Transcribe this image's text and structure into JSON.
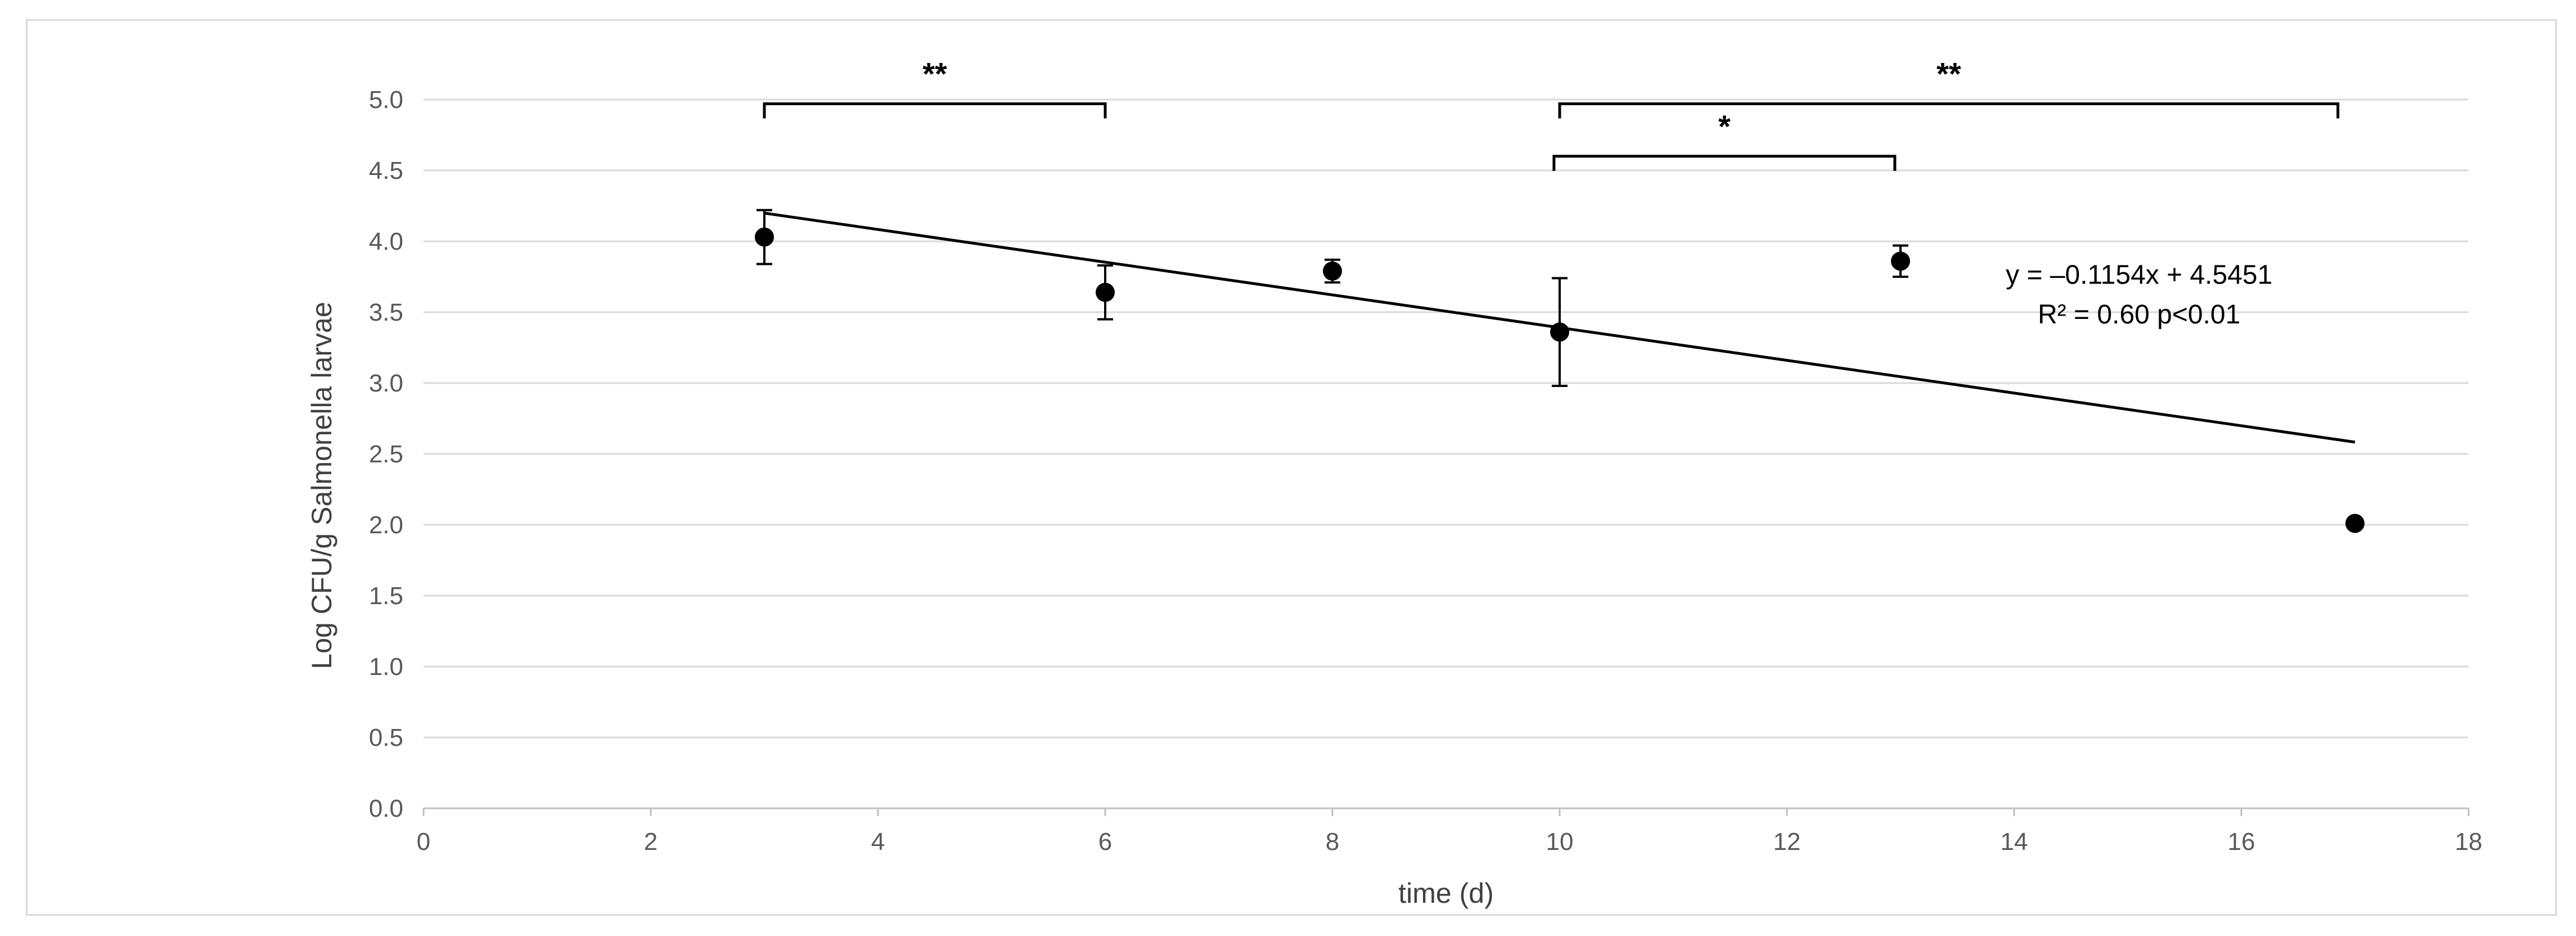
{
  "chart_data": {
    "type": "scatter",
    "title": "",
    "xlabel": "time (d)",
    "ylabel": "Log CFU/g Salmonella larvae",
    "xlim": [
      0,
      18
    ],
    "ylim": [
      0,
      5
    ],
    "xticks": [
      "0",
      "2",
      "4",
      "6",
      "8",
      "10",
      "12",
      "14",
      "16",
      "18"
    ],
    "yticks": [
      "0.0",
      "0.5",
      "1.0",
      "1.5",
      "2.0",
      "2.5",
      "3.0",
      "3.5",
      "4.0",
      "4.5",
      "5.0"
    ],
    "grid": "horizontal",
    "legend": "none",
    "series": [
      {
        "x": [
          3,
          6,
          8,
          10,
          13,
          17
        ],
        "y": [
          4.03,
          3.64,
          3.79,
          3.36,
          3.86,
          2.01
        ],
        "error": [
          0.19,
          0.19,
          0.08,
          0.38,
          0.11,
          0.02
        ],
        "color": "#000000"
      }
    ],
    "trendline": {
      "slope": -0.1154,
      "intercept": 4.5451,
      "x_range": [
        3,
        17
      ],
      "equation_label": "y = –0.1154x + 4.5451",
      "stats_label": "R² = 0.60 p<0.01"
    },
    "significance_brackets": [
      {
        "x_start": 3,
        "x_end": 6,
        "y": 4.97,
        "label": "**"
      },
      {
        "x_start": 10,
        "x_end": 16.85,
        "y": 4.97,
        "label": "**"
      },
      {
        "x_start": 9.95,
        "x_end": 12.95,
        "y": 4.6,
        "label": "*"
      }
    ]
  }
}
